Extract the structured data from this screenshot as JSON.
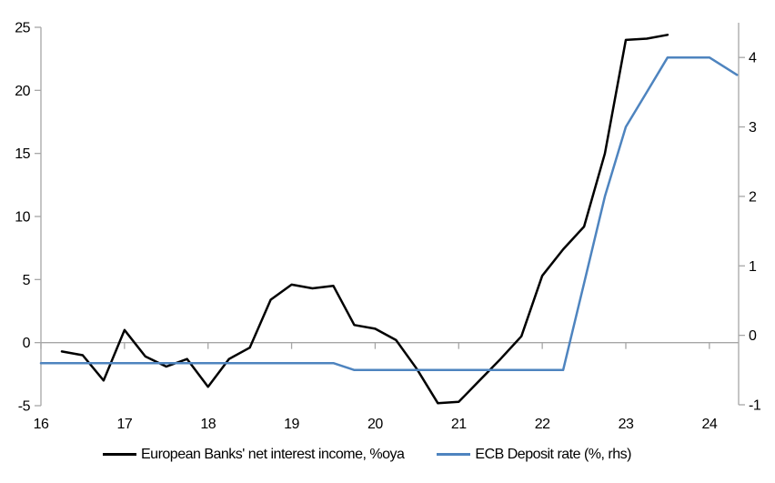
{
  "chart_data": {
    "type": "line",
    "title": "",
    "x_axis": {
      "ticks": [
        16,
        17,
        18,
        19,
        20,
        21,
        22,
        23,
        24
      ],
      "range": [
        16,
        24.35
      ],
      "tick_side": "below-zero-line"
    },
    "left_axis": {
      "ticks": [
        -5,
        0,
        5,
        10,
        15,
        20,
        25
      ],
      "range": [
        -5,
        25
      ]
    },
    "right_axis": {
      "ticks": [
        -1,
        0,
        1,
        2,
        3,
        4
      ],
      "range": [
        -1,
        4.5
      ]
    },
    "grid": "zero-line-only",
    "legend_position": "bottom",
    "series": [
      {
        "name": "European Banks' net interest income, %oya",
        "axis": "left",
        "color": "#000000",
        "points": [
          [
            16.25,
            -0.7
          ],
          [
            16.5,
            -1.0
          ],
          [
            16.75,
            -3.0
          ],
          [
            17.0,
            1.0
          ],
          [
            17.25,
            -1.1
          ],
          [
            17.5,
            -1.9
          ],
          [
            17.75,
            -1.3
          ],
          [
            18.0,
            -3.5
          ],
          [
            18.25,
            -1.3
          ],
          [
            18.5,
            -0.4
          ],
          [
            18.75,
            3.4
          ],
          [
            19.0,
            4.6
          ],
          [
            19.25,
            4.3
          ],
          [
            19.5,
            4.5
          ],
          [
            19.75,
            1.4
          ],
          [
            20.0,
            1.1
          ],
          [
            20.25,
            0.2
          ],
          [
            20.5,
            -2.1
          ],
          [
            20.75,
            -4.8
          ],
          [
            21.0,
            -4.7
          ],
          [
            21.25,
            -3.0
          ],
          [
            21.5,
            -1.3
          ],
          [
            21.75,
            0.5
          ],
          [
            22.0,
            5.3
          ],
          [
            22.25,
            7.4
          ],
          [
            22.5,
            9.2
          ],
          [
            22.75,
            15.0
          ],
          [
            23.0,
            24.0
          ],
          [
            23.25,
            24.1
          ],
          [
            23.5,
            24.4
          ]
        ]
      },
      {
        "name": "ECB Deposit rate (%, rhs)",
        "axis": "right",
        "color": "#4e84bf",
        "points": [
          [
            16.0,
            -0.4
          ],
          [
            16.25,
            -0.4
          ],
          [
            16.5,
            -0.4
          ],
          [
            16.75,
            -0.4
          ],
          [
            17.0,
            -0.4
          ],
          [
            17.25,
            -0.4
          ],
          [
            17.5,
            -0.4
          ],
          [
            17.75,
            -0.4
          ],
          [
            18.0,
            -0.4
          ],
          [
            18.25,
            -0.4
          ],
          [
            18.5,
            -0.4
          ],
          [
            18.75,
            -0.4
          ],
          [
            19.0,
            -0.4
          ],
          [
            19.25,
            -0.4
          ],
          [
            19.5,
            -0.4
          ],
          [
            19.75,
            -0.5
          ],
          [
            20.0,
            -0.5
          ],
          [
            20.25,
            -0.5
          ],
          [
            20.5,
            -0.5
          ],
          [
            20.75,
            -0.5
          ],
          [
            21.0,
            -0.5
          ],
          [
            21.25,
            -0.5
          ],
          [
            21.5,
            -0.5
          ],
          [
            21.75,
            -0.5
          ],
          [
            22.0,
            -0.5
          ],
          [
            22.25,
            -0.5
          ],
          [
            22.5,
            0.75
          ],
          [
            22.75,
            2.0
          ],
          [
            23.0,
            3.0
          ],
          [
            23.25,
            3.5
          ],
          [
            23.5,
            4.0
          ],
          [
            23.75,
            4.0
          ],
          [
            24.0,
            4.0
          ],
          [
            24.33,
            3.75
          ]
        ]
      }
    ]
  },
  "colors": {
    "background": "#ffffff",
    "axis": "#a6a6a6",
    "zero_gridline": "#a6a6a6",
    "text": "#000000",
    "series_black": "#000000",
    "series_blue": "#4e84bf"
  },
  "legend": {
    "items": [
      {
        "label": "European Banks' net interest income, %oya"
      },
      {
        "label": "ECB Deposit rate (%, rhs)"
      }
    ]
  }
}
